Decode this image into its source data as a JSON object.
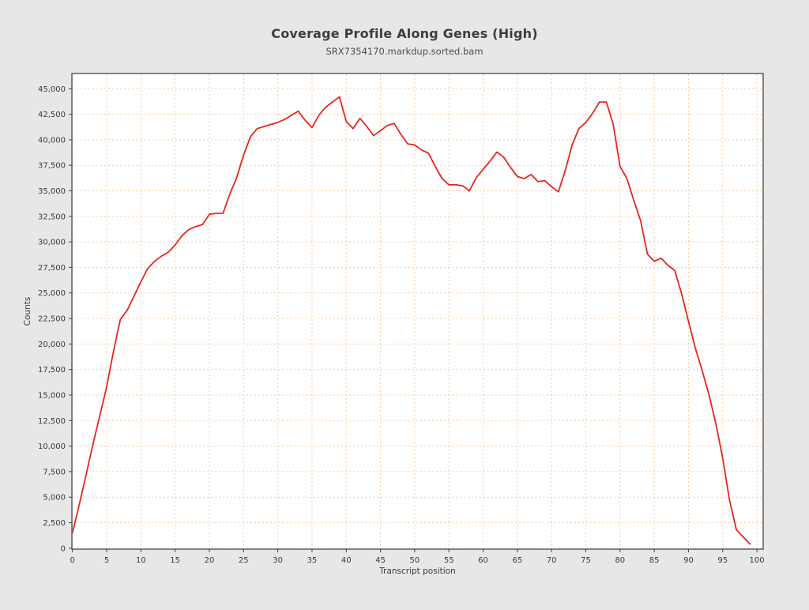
{
  "chart": {
    "title": "Coverage Profile Along Genes (High)",
    "subtitle": "SRX7354170.markdup.sorted.bam",
    "xlabel": "Transcript position",
    "ylabel": "Counts"
  },
  "colors": {
    "background": "#e7e7e7",
    "plot_background": "#ffffff",
    "grid": "#f6cba4",
    "spine": "#666666",
    "tick": "#444444",
    "text": "#3a3a3a",
    "line": "#e8251f"
  },
  "chart_data": {
    "type": "line",
    "title": "Coverage Profile Along Genes (High)",
    "subtitle": "SRX7354170.markdup.sorted.bam",
    "xlabel": "Transcript position",
    "ylabel": "Counts",
    "xlim": [
      0,
      101
    ],
    "ylim": [
      0,
      46500
    ],
    "x_ticks": [
      0,
      5,
      10,
      15,
      20,
      25,
      30,
      35,
      40,
      45,
      50,
      55,
      60,
      65,
      70,
      75,
      80,
      85,
      90,
      95,
      100
    ],
    "y_ticks": [
      0,
      2500,
      5000,
      7500,
      10000,
      12500,
      15000,
      17500,
      20000,
      22500,
      25000,
      27500,
      30000,
      32500,
      35000,
      37500,
      40000,
      42500,
      45000
    ],
    "grid": "dashed-both-axes",
    "legend": "none",
    "x": [
      0,
      1,
      2,
      3,
      4,
      5,
      6,
      7,
      8,
      9,
      10,
      11,
      12,
      13,
      14,
      15,
      16,
      17,
      18,
      19,
      20,
      21,
      22,
      23,
      24,
      25,
      26,
      27,
      28,
      29,
      30,
      31,
      32,
      33,
      34,
      35,
      36,
      37,
      38,
      39,
      40,
      41,
      42,
      43,
      44,
      45,
      46,
      47,
      48,
      49,
      50,
      51,
      52,
      53,
      54,
      55,
      56,
      57,
      58,
      59,
      60,
      61,
      62,
      63,
      64,
      65,
      66,
      67,
      68,
      69,
      70,
      71,
      72,
      73,
      74,
      75,
      76,
      77,
      78,
      79,
      80,
      81,
      82,
      83,
      84,
      85,
      86,
      87,
      88,
      89,
      90,
      91,
      92,
      93,
      94,
      95,
      96,
      97,
      98,
      99
    ],
    "series": [
      {
        "name": "SRX7354170.markdup.sorted.bam",
        "color": "#e8251f",
        "values": [
          1500,
          4300,
          7200,
          10200,
          13000,
          15800,
          19300,
          22400,
          23300,
          24700,
          26100,
          27400,
          28100,
          28600,
          29000,
          29700,
          30600,
          31200,
          31500,
          31700,
          32700,
          32800,
          32800,
          34700,
          36300,
          38500,
          40300,
          41100,
          41300,
          41500,
          41700,
          42000,
          42400,
          42800,
          41900,
          41200,
          42400,
          43200,
          43700,
          44200,
          41800,
          41100,
          42100,
          41300,
          40400,
          40900,
          41400,
          41600,
          40500,
          39600,
          39500,
          39000,
          38700,
          37400,
          36200,
          35600,
          35600,
          35500,
          35000,
          36300,
          37100,
          37900,
          38800,
          38300,
          37300,
          36400,
          36200,
          36600,
          35900,
          36000,
          35400,
          34900,
          37000,
          39500,
          41100,
          41700,
          42600,
          43700,
          43700,
          41500,
          37400,
          36200,
          34100,
          32100,
          28800,
          28100,
          28400,
          27700,
          27200,
          24900,
          22200,
          19600,
          17400,
          15000,
          12200,
          8800,
          4700,
          1800,
          1100,
          400
        ]
      }
    ]
  }
}
